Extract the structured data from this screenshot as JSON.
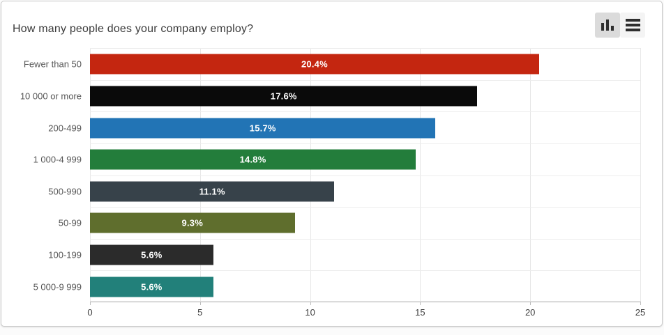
{
  "header": {
    "title": "How many people does your company employ?",
    "toolbar": {
      "buttons": [
        {
          "icon": "bar-chart-icon",
          "selected": true
        },
        {
          "icon": "hamburger-icon",
          "selected": false
        }
      ]
    }
  },
  "chart_data": {
    "type": "bar",
    "orientation": "horizontal",
    "title": "How many people does your company employ?",
    "categories": [
      "Fewer than 50",
      "10 000 or more",
      "200-499",
      "1 000-4 999",
      "500-990",
      "50-99",
      "100-199",
      "5 000-9 999"
    ],
    "values": [
      20.4,
      17.6,
      15.7,
      14.8,
      11.1,
      9.3,
      5.6,
      5.6
    ],
    "value_labels": [
      "20.4%",
      "17.6%",
      "15.7%",
      "14.8%",
      "11.1%",
      "9.3%",
      "5.6%",
      "5.6%"
    ],
    "bar_colors": [
      "#c42610",
      "#0a0a0a",
      "#2274b5",
      "#237d3b",
      "#37424a",
      "#5f6e2d",
      "#2b2b2b",
      "#22807a"
    ],
    "xlim": [
      0,
      25
    ],
    "x_ticks": [
      0,
      5,
      10,
      15,
      20,
      25
    ],
    "grid": true,
    "legend": "none",
    "value_label_color": "#ffffff"
  },
  "colors": {
    "grid_line": "#e7e7e7",
    "row_line": "#ededed",
    "axis_line": "#a6a6a6",
    "category_text": "#575757",
    "tick_text": "#3d3d3d",
    "title_text": "#3a3a3a",
    "selected_button_bg": "#dbdbdb",
    "button_bg": "#f4f4f4"
  }
}
